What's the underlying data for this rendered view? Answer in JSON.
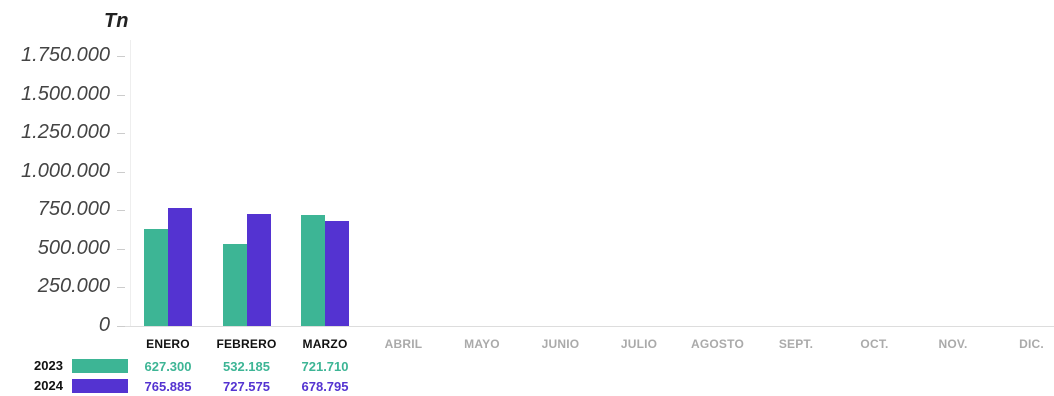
{
  "chart_data": {
    "type": "bar",
    "ylabel": "Tn",
    "ylim": [
      0,
      1750000
    ],
    "yticks": [
      0,
      250000,
      500000,
      750000,
      1000000,
      1250000,
      1500000,
      1750000
    ],
    "ytick_labels": [
      "0",
      "250.000",
      "500.000",
      "750.000",
      "1.000.000",
      "1.250.000",
      "1.500.000",
      "1.750.000"
    ],
    "categories": [
      "ENERO",
      "FEBRERO",
      "MARZO",
      "ABRIL",
      "MAYO",
      "JUNIO",
      "JULIO",
      "AGOSTO",
      "SEPT.",
      "OCT.",
      "NOV.",
      "DIC."
    ],
    "series": [
      {
        "name": "2023",
        "color": "#3db595",
        "values": [
          627300,
          532185,
          721710,
          null,
          null,
          null,
          null,
          null,
          null,
          null,
          null,
          null
        ],
        "labels": [
          "627.300",
          "532.185",
          "721.710"
        ]
      },
      {
        "name": "2024",
        "color": "#5433d1",
        "values": [
          765885,
          727575,
          678795,
          null,
          null,
          null,
          null,
          null,
          null,
          null,
          null,
          null
        ],
        "labels": [
          "765.885",
          "727.575",
          "678.795"
        ]
      }
    ],
    "legend_placement": "bottom-left",
    "grid": false,
    "colors": {
      "active_tick": "#111111",
      "inactive_tick": "#aaaaaa"
    }
  }
}
